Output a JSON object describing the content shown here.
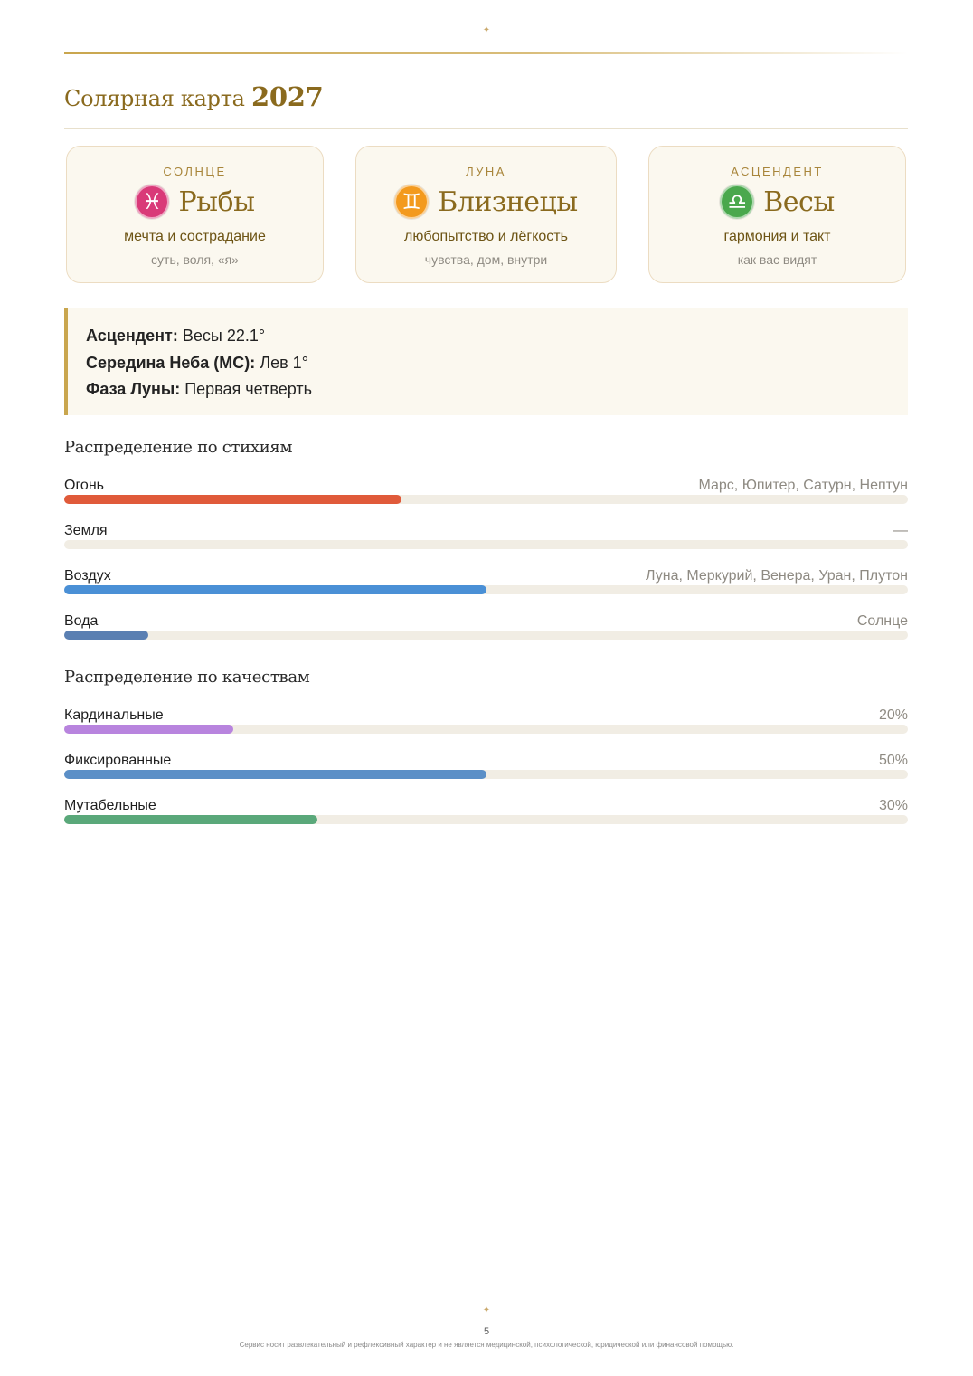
{
  "header": {
    "ornament": "✦",
    "title": "Солярная карта",
    "year": "2027"
  },
  "cards": [
    {
      "label": "СОЛНЦЕ",
      "sign": "Рыбы",
      "glyph": "♓",
      "icon": "pisces-icon",
      "color": "#d93a78",
      "trait": "мечта и сострадание",
      "hint": "суть, воля, «я»"
    },
    {
      "label": "ЛУНА",
      "sign": "Близнецы",
      "glyph": "♊",
      "icon": "gemini-icon",
      "color": "#f39a1e",
      "trait": "любопытство и лёгкость",
      "hint": "чувства, дом, внутри"
    },
    {
      "label": "АСЦЕНДЕНТ",
      "sign": "Весы",
      "glyph": "♎",
      "icon": "libra-icon",
      "color": "#4aa84d",
      "trait": "гармония и такт",
      "hint": "как вас видят"
    }
  ],
  "info": [
    {
      "key": "Асцендент:",
      "value": "Весы 22.1°"
    },
    {
      "key": "Середина Неба (MC):",
      "value": "Лев 1°"
    },
    {
      "key": "Фаза Луны:",
      "value": "Первая четверть"
    }
  ],
  "elements": {
    "title": "Распределение по стихиям",
    "items": [
      {
        "name": "Огонь",
        "value": "Марс, Юпитер, Сатурн, Нептун",
        "fraction": 0.4,
        "color": "#e05a3a"
      },
      {
        "name": "Земля",
        "value": "—",
        "fraction": 0.0,
        "color": "#a08a5a"
      },
      {
        "name": "Воздух",
        "value": "Луна, Меркурий, Венера, Уран, Плутон",
        "fraction": 0.5,
        "color": "#4a90d6"
      },
      {
        "name": "Вода",
        "value": "Солнце",
        "fraction": 0.1,
        "color": "#5a7fb2"
      }
    ]
  },
  "modalities": {
    "title": "Распределение по качествам",
    "items": [
      {
        "name": "Кардинальные",
        "value": "20%",
        "fraction": 0.2,
        "color": "#b884de"
      },
      {
        "name": "Фиксированные",
        "value": "50%",
        "fraction": 0.5,
        "color": "#5b8fc7"
      },
      {
        "name": "Мутабельные",
        "value": "30%",
        "fraction": 0.3,
        "color": "#5aa87a"
      }
    ]
  },
  "footer": {
    "ornament": "✦",
    "page_number": "5",
    "disclaimer": "Сервис носит развлекательный и рефлексивный характер и не является медицинской, психологической, юридической или финансовой помощью."
  }
}
